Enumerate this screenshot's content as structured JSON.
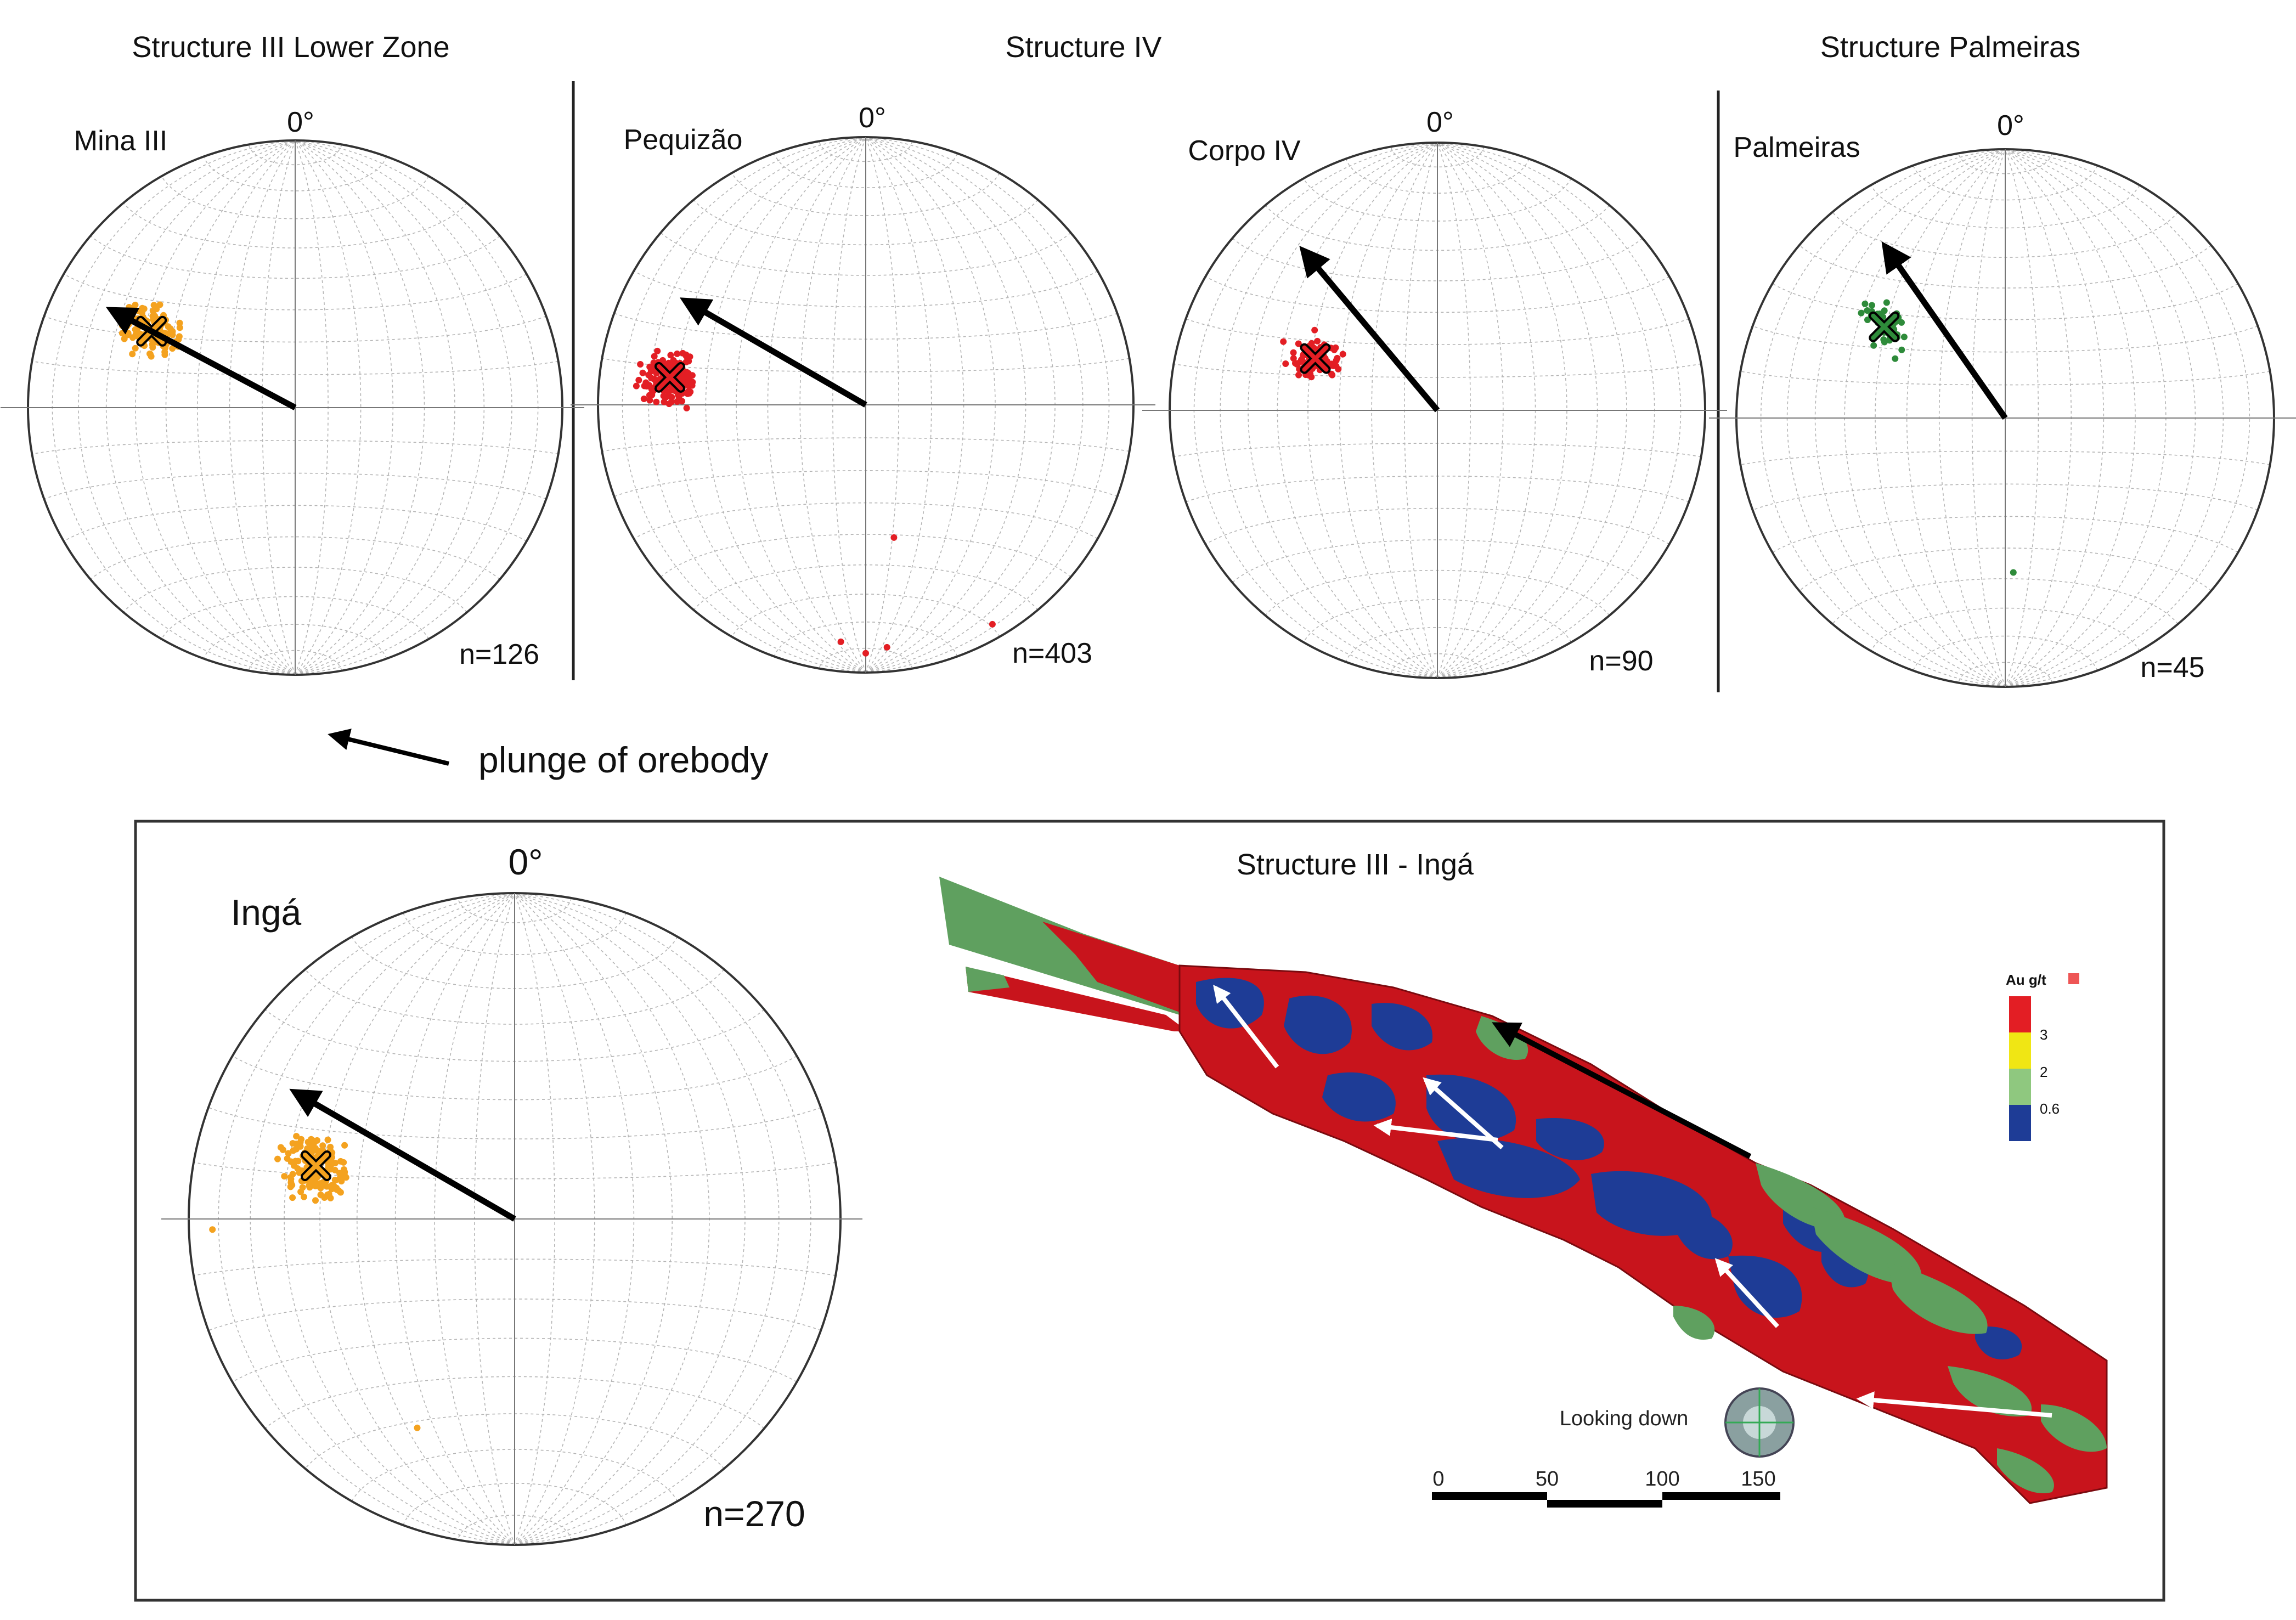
{
  "colors": {
    "orange": "#f4a21f",
    "red": "#e31e24",
    "green": "#2e8b3a",
    "model_red": "#c8141c",
    "model_blue": "#1e3c96",
    "model_green": "#5fa05f",
    "model_yellow": "#f0e614"
  },
  "headings": {
    "structure_iii": "Structure III Lower Zone",
    "structure_iv": "Structure IV",
    "structure_palmeiras": "Structure Palmeiras"
  },
  "stereonets": [
    {
      "id": "mina",
      "name": "Mina III",
      "north": "0°",
      "n": "n=126",
      "color": "orange",
      "mean": {
        "trend": 298,
        "plunge": 39
      },
      "arrow_trend": 298
    },
    {
      "id": "pequizao",
      "name": "Pequizão",
      "north": "0°",
      "n": "n=403",
      "color": "red",
      "mean": {
        "trend": 278,
        "plunge": 27
      },
      "arrow_trend": 300
    },
    {
      "id": "corpo",
      "name": "Corpo IV",
      "north": "0°",
      "n": "n=90",
      "color": "red",
      "mean": {
        "trend": 293,
        "plunge": 49
      },
      "arrow_trend": 320
    },
    {
      "id": "palmeiras",
      "name": "Palmeiras",
      "north": "0°",
      "n": "n=45",
      "color": "green",
      "mean": {
        "trend": 307,
        "plunge": 43
      },
      "arrow_trend": 325
    },
    {
      "id": "inga",
      "name": "Ingá",
      "north": "0°",
      "n": "n=270",
      "color": "orange",
      "mean": {
        "trend": 285,
        "plunge": 37
      },
      "arrow_trend": 300
    }
  ],
  "legend_arrow": {
    "label": "plunge of orebody"
  },
  "model": {
    "title": "Structure III - Ingá",
    "legend_title": "Au g/t",
    "legend_values": [
      "3",
      "2",
      "0.6"
    ],
    "view_label": "Looking down",
    "scale_labels": [
      "0",
      "50",
      "100",
      "150"
    ]
  }
}
